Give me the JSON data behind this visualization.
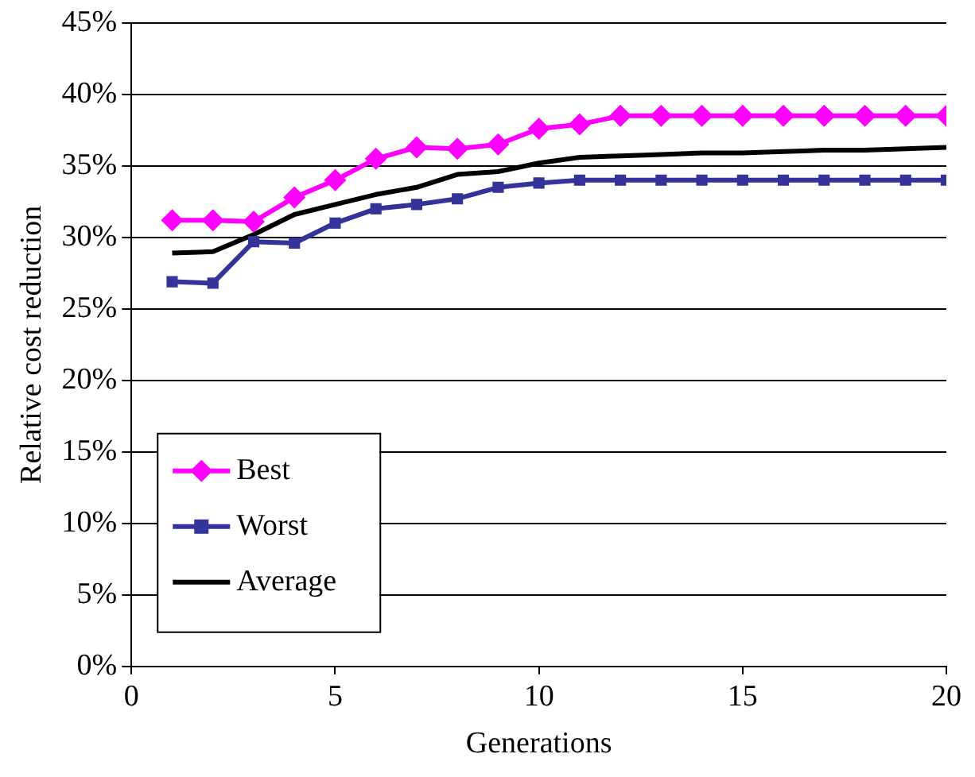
{
  "chart_data": {
    "type": "line",
    "xlabel": "Generations",
    "ylabel": "Relative cost reduction",
    "x": [
      1,
      2,
      3,
      4,
      5,
      6,
      7,
      8,
      9,
      10,
      11,
      12,
      13,
      14,
      15,
      16,
      17,
      18,
      19,
      20
    ],
    "xlim": [
      0,
      20
    ],
    "xticks": [
      0,
      5,
      10,
      15,
      20
    ],
    "ylim": [
      0,
      45
    ],
    "yticks": [
      {
        "value": 0,
        "label": "0%"
      },
      {
        "value": 5,
        "label": "5%"
      },
      {
        "value": 10,
        "label": "10%"
      },
      {
        "value": 15,
        "label": "15%"
      },
      {
        "value": 20,
        "label": "20%"
      },
      {
        "value": 25,
        "label": "25%"
      },
      {
        "value": 30,
        "label": "30%"
      },
      {
        "value": 35,
        "label": "35%"
      },
      {
        "value": 40,
        "label": "40%"
      },
      {
        "value": 45,
        "label": "45%"
      }
    ],
    "grid": "y",
    "legend": "bottom left",
    "series": [
      {
        "name": "Best",
        "color": "#ff00ff",
        "marker": "diamond",
        "values": [
          31.2,
          31.2,
          31.1,
          32.8,
          34.0,
          35.5,
          36.3,
          36.2,
          36.5,
          37.6,
          37.9,
          38.5,
          38.5,
          38.5,
          38.5,
          38.5,
          38.5,
          38.5,
          38.5,
          38.5
        ]
      },
      {
        "name": "Worst",
        "color": "#333399",
        "marker": "square",
        "values": [
          26.9,
          26.8,
          29.7,
          29.6,
          31.0,
          32.0,
          32.3,
          32.7,
          33.5,
          33.8,
          34.0,
          34.0,
          34.0,
          34.0,
          34.0,
          34.0,
          34.0,
          34.0,
          34.0,
          34.0
        ]
      },
      {
        "name": "Average",
        "color": "#000000",
        "marker": "none",
        "values": [
          28.9,
          29.0,
          30.2,
          31.6,
          32.3,
          33.0,
          33.5,
          34.4,
          34.6,
          35.2,
          35.6,
          35.7,
          35.8,
          35.9,
          35.9,
          36.0,
          36.1,
          36.1,
          36.2,
          36.3
        ]
      }
    ]
  }
}
